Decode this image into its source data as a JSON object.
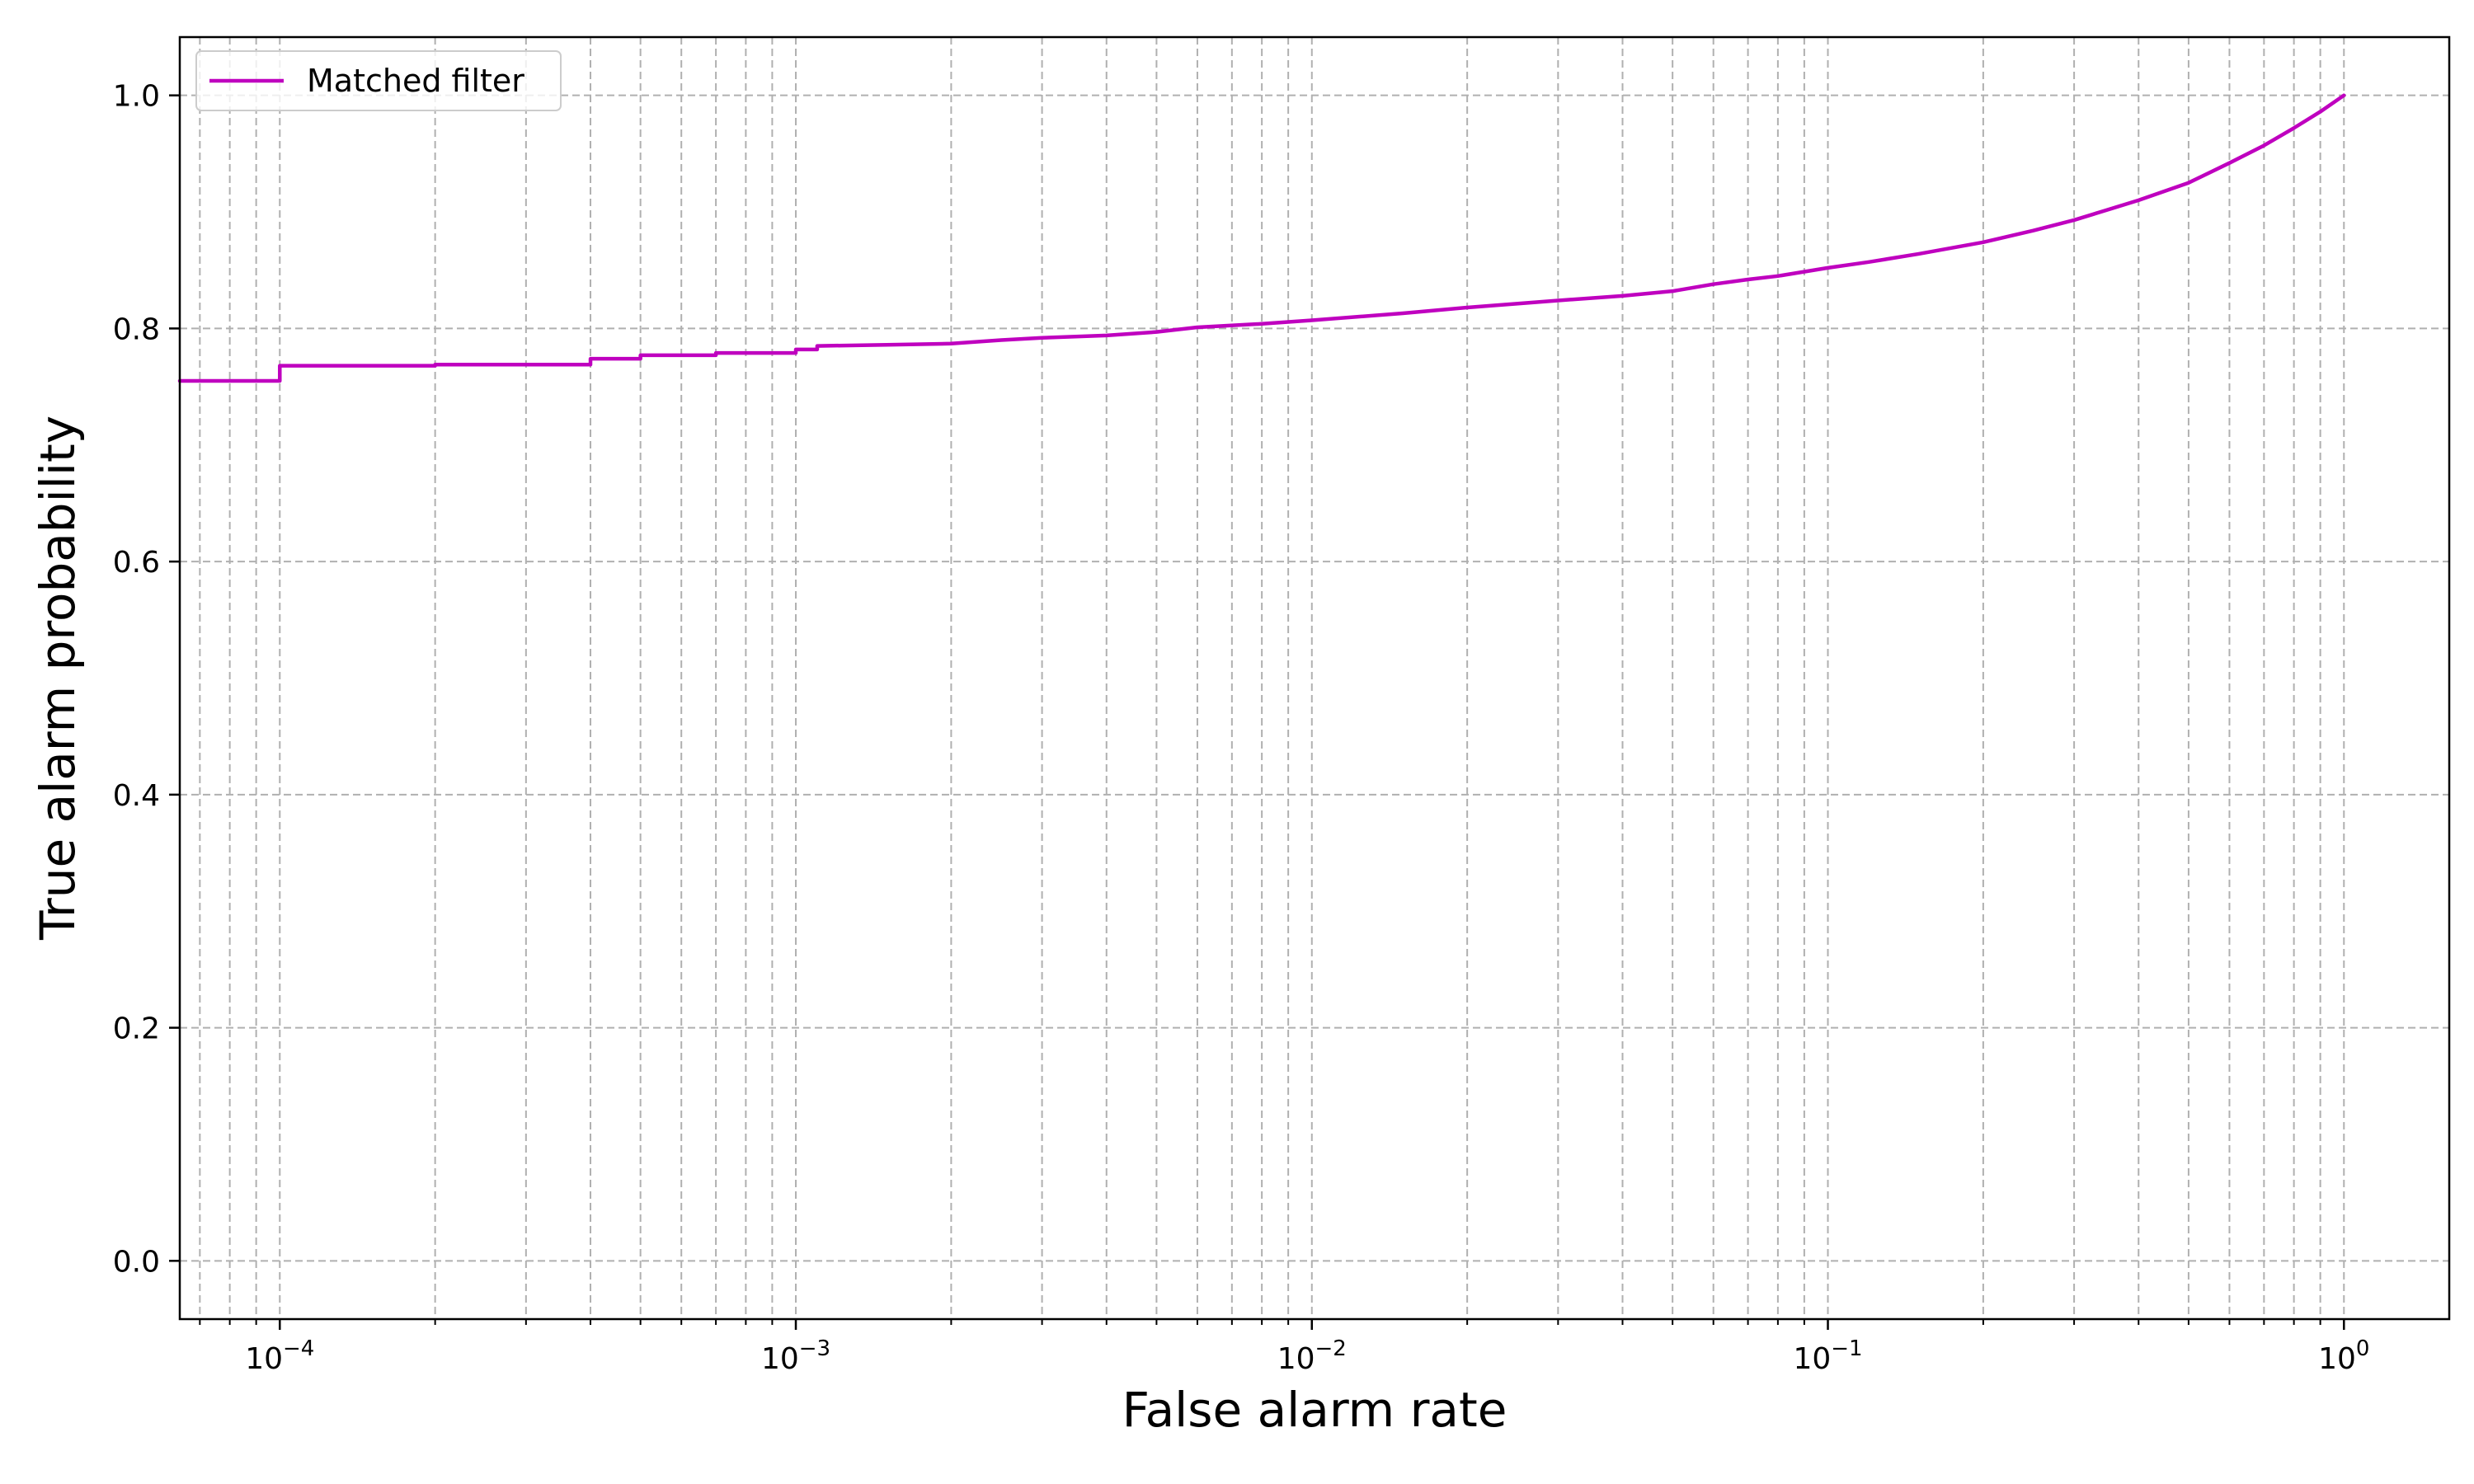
{
  "chart_data": {
    "type": "line",
    "xscale": "log",
    "xlabel": "False alarm rate",
    "ylabel": "True alarm probability",
    "xlim": [
      6.4e-05,
      1.6
    ],
    "ylim": [
      -0.05,
      1.05
    ],
    "grid": true,
    "grid_style": "dashed",
    "legend_position": "top-left",
    "x_ticks": [
      {
        "value": 0.0001,
        "mantissa": "10",
        "exp": "−4"
      },
      {
        "value": 0.001,
        "mantissa": "10",
        "exp": "−3"
      },
      {
        "value": 0.01,
        "mantissa": "10",
        "exp": "−2"
      },
      {
        "value": 0.1,
        "mantissa": "10",
        "exp": "−1"
      },
      {
        "value": 1,
        "mantissa": "10",
        "exp": "0"
      }
    ],
    "y_ticks": [
      {
        "value": 0.0,
        "label": "0.0"
      },
      {
        "value": 0.2,
        "label": "0.2"
      },
      {
        "value": 0.4,
        "label": "0.4"
      },
      {
        "value": 0.6,
        "label": "0.6"
      },
      {
        "value": 0.8,
        "label": "0.8"
      },
      {
        "value": 1.0,
        "label": "1.0"
      }
    ],
    "series": [
      {
        "name": "Matched filter",
        "color": "#bf00bf",
        "drawstyle": "steps",
        "points": [
          [
            6.4e-05,
            0.755
          ],
          [
            0.0001,
            0.755
          ],
          [
            0.0001,
            0.768
          ],
          [
            0.0002,
            0.768
          ],
          [
            0.0002,
            0.769
          ],
          [
            0.0004,
            0.769
          ],
          [
            0.0004,
            0.774
          ],
          [
            0.0005,
            0.774
          ],
          [
            0.0005,
            0.777
          ],
          [
            0.0007,
            0.777
          ],
          [
            0.0007,
            0.779
          ],
          [
            0.001,
            0.779
          ],
          [
            0.001,
            0.782
          ],
          [
            0.0011,
            0.782
          ],
          [
            0.0011,
            0.785
          ],
          [
            0.0015,
            0.786
          ],
          [
            0.002,
            0.787
          ],
          [
            0.0025,
            0.79
          ],
          [
            0.003,
            0.792
          ],
          [
            0.004,
            0.794
          ],
          [
            0.005,
            0.797
          ],
          [
            0.006,
            0.801
          ],
          [
            0.008,
            0.804
          ],
          [
            0.01,
            0.807
          ],
          [
            0.015,
            0.813
          ],
          [
            0.02,
            0.818
          ],
          [
            0.03,
            0.824
          ],
          [
            0.04,
            0.828
          ],
          [
            0.05,
            0.832
          ],
          [
            0.06,
            0.838
          ],
          [
            0.07,
            0.842
          ],
          [
            0.08,
            0.845
          ],
          [
            0.1,
            0.852
          ],
          [
            0.12,
            0.857
          ],
          [
            0.15,
            0.864
          ],
          [
            0.2,
            0.874
          ],
          [
            0.25,
            0.884
          ],
          [
            0.3,
            0.893
          ],
          [
            0.4,
            0.91
          ],
          [
            0.5,
            0.925
          ],
          [
            0.6,
            0.942
          ],
          [
            0.7,
            0.957
          ],
          [
            0.8,
            0.972
          ],
          [
            0.9,
            0.986
          ],
          [
            1.0,
            1.0
          ]
        ]
      }
    ]
  }
}
